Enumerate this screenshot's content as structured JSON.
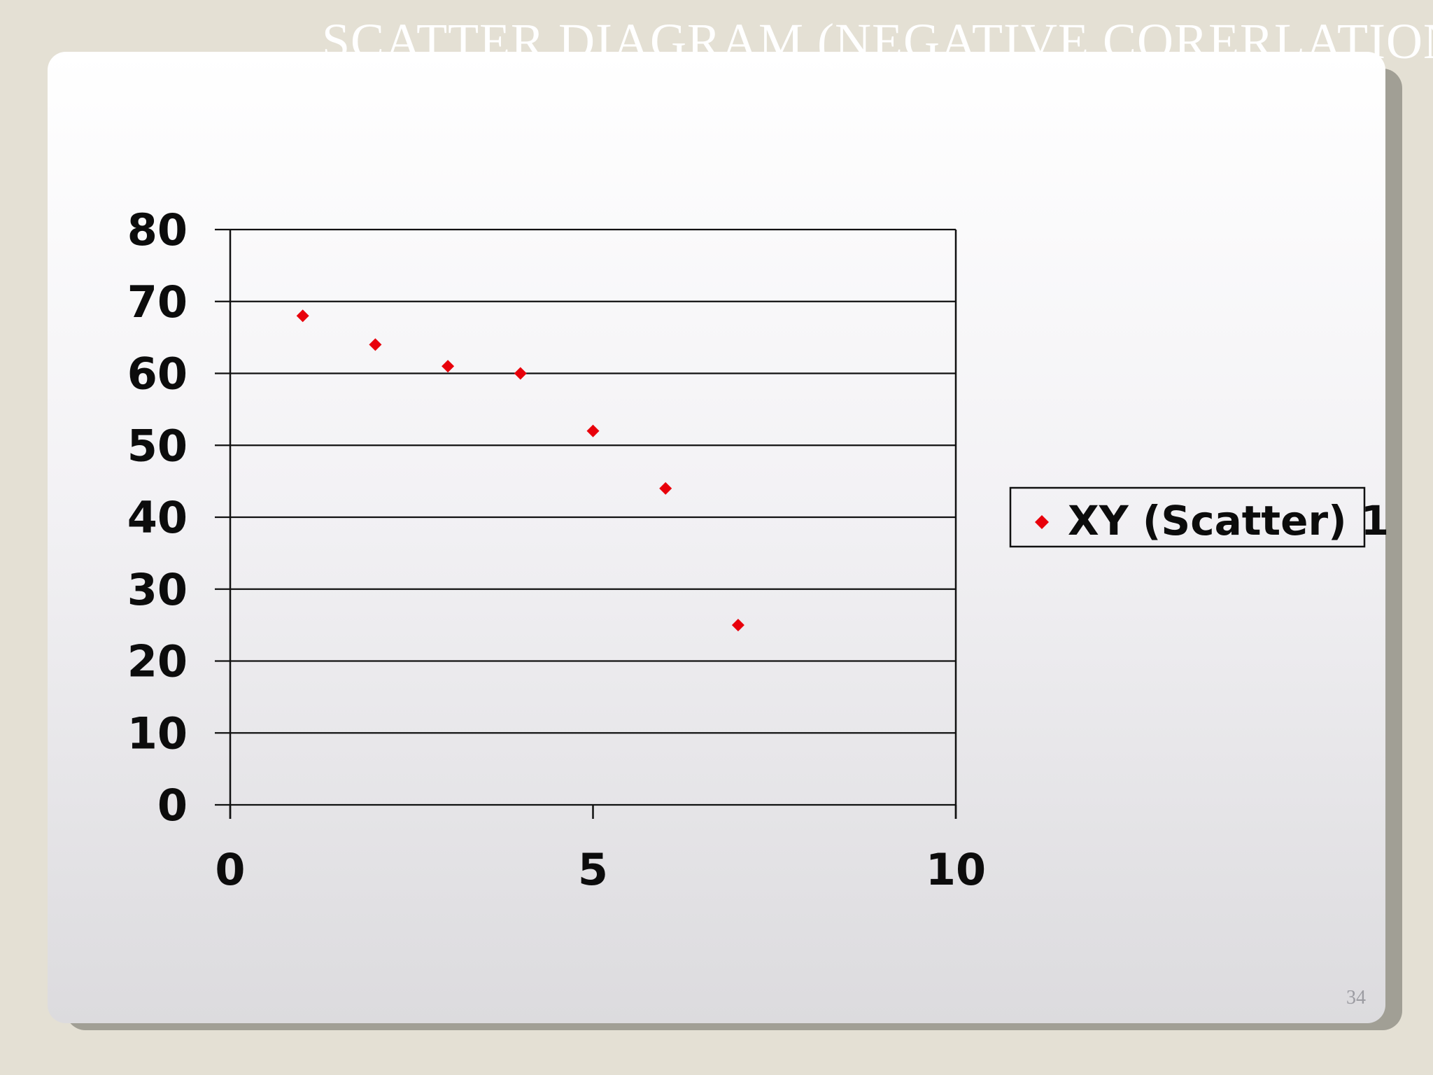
{
  "slide": {
    "title": "SCATTER DIAGRAM (NEGATIVE CORERLATION)",
    "page_number": "34"
  },
  "chart_data": {
    "type": "scatter",
    "title": "",
    "xlabel": "",
    "ylabel": "",
    "xlim": [
      0,
      10
    ],
    "ylim": [
      0,
      80
    ],
    "x_ticks": [
      0,
      5,
      10
    ],
    "y_ticks": [
      0,
      10,
      20,
      30,
      40,
      50,
      60,
      70,
      80
    ],
    "grid": {
      "horizontal": true,
      "vertical": false
    },
    "legend": "right",
    "series": [
      {
        "name": "XY (Scatter) 1",
        "marker": "diamond",
        "color": "#e8000b",
        "x": [
          1,
          2,
          3,
          4,
          5,
          6,
          7
        ],
        "y": [
          68,
          64,
          61,
          60,
          52,
          44,
          25
        ]
      }
    ]
  }
}
